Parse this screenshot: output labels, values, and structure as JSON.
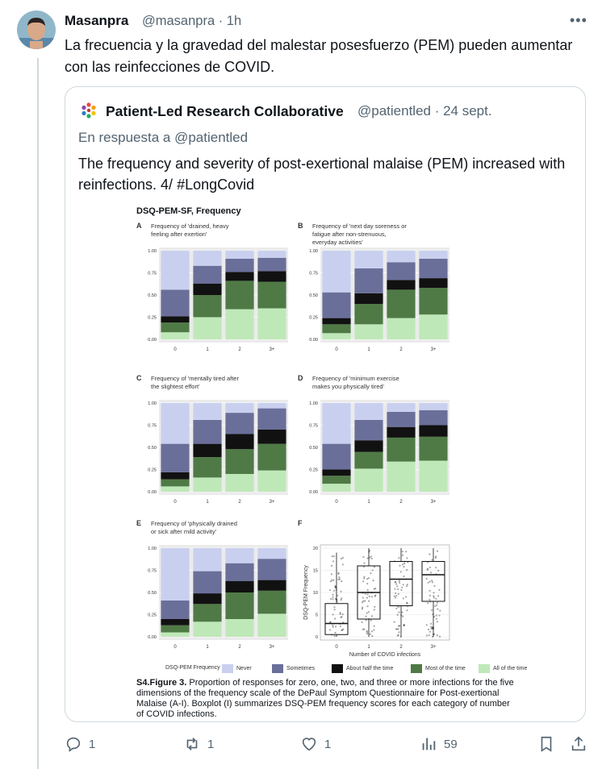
{
  "post": {
    "author_name": "Masanpra",
    "author_meta": "@masanpra · 1h",
    "more_label": "•••",
    "text": "La frecuencia y la gravedad del malestar posesfuerzo (PEM) pueden aumentar con las reinfecciones de COVID."
  },
  "quote": {
    "author_name": "Patient-Led Research Collaborative",
    "author_meta": "@patientled · 24 sept.",
    "reply_prefix": "En respuesta a",
    "reply_handle": "@patientled",
    "text": "The frequency and severity of post-exertional malaise (PEM) increased with reinfections. 4/ #LongCovid"
  },
  "figure": {
    "title": "DSQ-PEM-SF, Frequency",
    "caption_lead": "S4.Figure 3.",
    "caption_body": " Proportion of responses for zero, one, two, and three or more infections for the five dimensions of the frequency scale of the DePaul Symptom Questionnaire for Post-exertional Malaise (A-I). Boxplot (I) summarizes DSQ-PEM frequency scores for each category of number of COVID infections.",
    "legend_title": "DSQ-PEM Frequency",
    "legend_items": [
      "Never",
      "Sometimes",
      "About half the time",
      "Most of the time",
      "All of the time"
    ],
    "colors": {
      "never": "#c9d0ef",
      "sometimes": "#6a6f9a",
      "half": "#111111",
      "most": "#4f7a45",
      "all": "#bfe8b8"
    }
  },
  "chart_data": [
    {
      "type": "bar",
      "stacked": true,
      "panel": "A",
      "title": "Frequency of 'drained, heavy feeling after exertion'",
      "categories": [
        "0",
        "1",
        "2",
        "3+"
      ],
      "ylim": [
        0,
        1
      ],
      "yticks": [
        "0.00",
        "0.25",
        "0.50",
        "0.75",
        "1.00"
      ],
      "series": [
        {
          "name": "All of the time",
          "values": [
            0.08,
            0.25,
            0.34,
            0.35
          ]
        },
        {
          "name": "Most of the time",
          "values": [
            0.11,
            0.25,
            0.32,
            0.3
          ]
        },
        {
          "name": "About half the time",
          "values": [
            0.07,
            0.13,
            0.1,
            0.12
          ]
        },
        {
          "name": "Sometimes",
          "values": [
            0.3,
            0.2,
            0.15,
            0.15
          ]
        },
        {
          "name": "Never",
          "values": [
            0.44,
            0.17,
            0.09,
            0.08
          ]
        }
      ]
    },
    {
      "type": "bar",
      "stacked": true,
      "panel": "B",
      "title": "Frequency of 'next day soreness or fatigue after non-strenuous, everyday activities'",
      "categories": [
        "0",
        "1",
        "2",
        "3+"
      ],
      "ylim": [
        0,
        1
      ],
      "yticks": [
        "0.00",
        "0.25",
        "0.50",
        "0.75",
        "1.00"
      ],
      "series": [
        {
          "name": "All of the time",
          "values": [
            0.07,
            0.17,
            0.24,
            0.28
          ]
        },
        {
          "name": "Most of the time",
          "values": [
            0.1,
            0.23,
            0.32,
            0.3
          ]
        },
        {
          "name": "About half the time",
          "values": [
            0.07,
            0.12,
            0.11,
            0.11
          ]
        },
        {
          "name": "Sometimes",
          "values": [
            0.29,
            0.28,
            0.2,
            0.22
          ]
        },
        {
          "name": "Never",
          "values": [
            0.47,
            0.2,
            0.13,
            0.09
          ]
        }
      ]
    },
    {
      "type": "bar",
      "stacked": true,
      "panel": "C",
      "title": "Frequency of 'mentally tired after the slightest effort'",
      "categories": [
        "0",
        "1",
        "2",
        "3+"
      ],
      "ylim": [
        0,
        1
      ],
      "yticks": [
        "0.00",
        "0.25",
        "0.50",
        "0.75",
        "1.00"
      ],
      "series": [
        {
          "name": "All of the time",
          "values": [
            0.06,
            0.16,
            0.2,
            0.24
          ]
        },
        {
          "name": "Most of the time",
          "values": [
            0.08,
            0.23,
            0.28,
            0.3
          ]
        },
        {
          "name": "About half the time",
          "values": [
            0.08,
            0.15,
            0.17,
            0.16
          ]
        },
        {
          "name": "Sometimes",
          "values": [
            0.32,
            0.27,
            0.24,
            0.24
          ]
        },
        {
          "name": "Never",
          "values": [
            0.46,
            0.19,
            0.11,
            0.06
          ]
        }
      ]
    },
    {
      "type": "bar",
      "stacked": true,
      "panel": "D",
      "title": "Frequency of 'minimum exercise makes you physically tired'",
      "categories": [
        "0",
        "1",
        "2",
        "3+"
      ],
      "ylim": [
        0,
        1
      ],
      "yticks": [
        "0.00",
        "0.25",
        "0.50",
        "0.75",
        "1.00"
      ],
      "series": [
        {
          "name": "All of the time",
          "values": [
            0.09,
            0.26,
            0.34,
            0.35
          ]
        },
        {
          "name": "Most of the time",
          "values": [
            0.09,
            0.19,
            0.27,
            0.27
          ]
        },
        {
          "name": "About half the time",
          "values": [
            0.07,
            0.13,
            0.12,
            0.13
          ]
        },
        {
          "name": "Sometimes",
          "values": [
            0.29,
            0.23,
            0.17,
            0.17
          ]
        },
        {
          "name": "Never",
          "values": [
            0.46,
            0.19,
            0.1,
            0.08
          ]
        }
      ]
    },
    {
      "type": "bar",
      "stacked": true,
      "panel": "E",
      "title": "Frequency of 'physically drained or sick after mild activity'",
      "categories": [
        "0",
        "1",
        "2",
        "3+"
      ],
      "ylim": [
        0,
        1
      ],
      "yticks": [
        "0.00",
        "0.25",
        "0.50",
        "0.75",
        "1.00"
      ],
      "series": [
        {
          "name": "All of the time",
          "values": [
            0.05,
            0.17,
            0.2,
            0.26
          ]
        },
        {
          "name": "Most of the time",
          "values": [
            0.08,
            0.2,
            0.3,
            0.26
          ]
        },
        {
          "name": "About half the time",
          "values": [
            0.07,
            0.12,
            0.13,
            0.12
          ]
        },
        {
          "name": "Sometimes",
          "values": [
            0.21,
            0.25,
            0.2,
            0.24
          ]
        },
        {
          "name": "Never",
          "values": [
            0.59,
            0.26,
            0.17,
            0.12
          ]
        }
      ]
    },
    {
      "type": "box",
      "panel": "F",
      "xlabel": "Number of COVID infections",
      "ylabel": "DSQ-PEM Frequency",
      "categories": [
        "0",
        "1",
        "2",
        "3+"
      ],
      "ylim": [
        0,
        20
      ],
      "yticks": [
        "0",
        "5",
        "10",
        "15",
        "20"
      ],
      "boxes": [
        {
          "q1": 0.5,
          "median": 3,
          "q3": 7.5,
          "min": 0,
          "max": 19
        },
        {
          "q1": 4,
          "median": 10,
          "q3": 16,
          "min": 0,
          "max": 20
        },
        {
          "q1": 7,
          "median": 13,
          "q3": 17,
          "min": 0,
          "max": 20
        },
        {
          "q1": 8,
          "median": 14,
          "q3": 17,
          "min": 0,
          "max": 20
        }
      ]
    }
  ],
  "actions": {
    "reply_count": "1",
    "repost_count": "1",
    "like_count": "1",
    "views_count": "59"
  }
}
